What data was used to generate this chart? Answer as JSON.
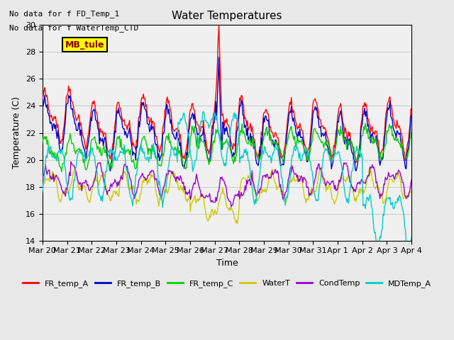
{
  "title": "Water Temperatures",
  "xlabel": "Time",
  "ylabel": "Temperature (C)",
  "ylim": [
    14,
    30
  ],
  "yticks": [
    14,
    16,
    18,
    20,
    22,
    24,
    26,
    28,
    30
  ],
  "annotations": [
    "No data for f FD_Temp_1",
    "No data for f WaterTemp_CTD"
  ],
  "legend_box_label": "MB_tule",
  "legend_entries": [
    "FR_temp_A",
    "FR_temp_B",
    "FR_temp_C",
    "WaterT",
    "CondTemp",
    "MDTemp_A"
  ],
  "legend_colors": [
    "#ff0000",
    "#0000cc",
    "#00cc00",
    "#cccc00",
    "#9900cc",
    "#00cccc"
  ],
  "bg_color": "#e8e8e8",
  "plot_bg_color": "#f0f0f0",
  "x_labels": [
    "Mar 20",
    "Mar 21",
    "Mar 22",
    "Mar 23",
    "Mar 24",
    "Mar 25",
    "Mar 26",
    "Mar 27",
    "Mar 28",
    "Mar 29",
    "Mar 30",
    "Mar 31",
    "Apr 1",
    "Apr 2",
    "Apr 3",
    "Apr 4"
  ],
  "grid_color": "#cccccc"
}
